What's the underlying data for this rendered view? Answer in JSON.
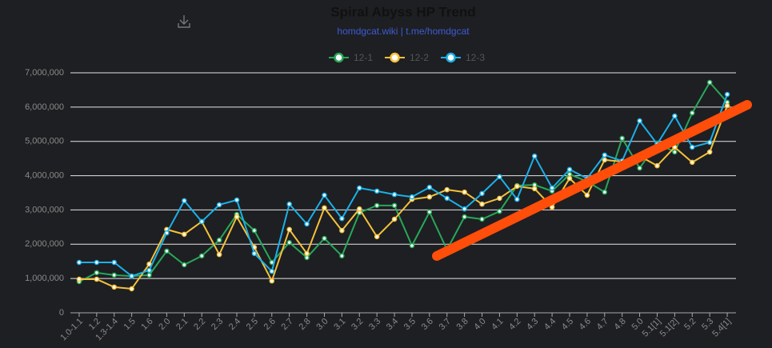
{
  "chart_data": {
    "type": "line",
    "title": "Spiral Abyss HP Trend",
    "subtitle": "homdgcat.wiki | t.me/homdgcat",
    "categories": [
      "1.0-1.1",
      "1.2",
      "1.3-1.4",
      "1.5",
      "1.6",
      "2.0",
      "2.1",
      "2.2",
      "2.3",
      "2.4",
      "2.5",
      "2.6",
      "2.7",
      "2.8",
      "3.0",
      "3.1",
      "3.2",
      "3.3",
      "3.4",
      "3.5",
      "3.6",
      "3.7",
      "3.8",
      "4.0",
      "4.1",
      "4.2",
      "4.3",
      "4.4",
      "4.5",
      "4.6",
      "4.7",
      "4.8",
      "5.0",
      "5.1[1]",
      "5.1[2]",
      "5.2",
      "5.3",
      "5.4[1]"
    ],
    "series": [
      {
        "name": "12-1",
        "color": "#27a85a",
        "values": [
          910000,
          1170000,
          1100000,
          1070000,
          1100000,
          1800000,
          1400000,
          1660000,
          2120000,
          2870000,
          2400000,
          1470000,
          2050000,
          1610000,
          2170000,
          1660000,
          2920000,
          3130000,
          3130000,
          1960000,
          2940000,
          1840000,
          2800000,
          2730000,
          2960000,
          3710000,
          3730000,
          3550000,
          4040000,
          3830000,
          3520000,
          5090000,
          4220000,
          4950000,
          4690000,
          5830000,
          6720000,
          6140000
        ]
      },
      {
        "name": "12-2",
        "color": "#f5c13a",
        "values": [
          980000,
          980000,
          750000,
          700000,
          1420000,
          2430000,
          2290000,
          2660000,
          1700000,
          2800000,
          1910000,
          930000,
          2430000,
          1730000,
          3060000,
          2400000,
          3030000,
          2220000,
          2730000,
          3310000,
          3380000,
          3590000,
          3520000,
          3170000,
          3340000,
          3690000,
          3620000,
          3080000,
          3920000,
          3430000,
          4460000,
          4410000,
          4570000,
          4290000,
          4830000,
          4390000,
          4690000,
          6040000
        ]
      },
      {
        "name": "12-3",
        "color": "#1bb0e8",
        "values": [
          1470000,
          1470000,
          1470000,
          1070000,
          1240000,
          2330000,
          3270000,
          2660000,
          3150000,
          3290000,
          1730000,
          1210000,
          3170000,
          2590000,
          3430000,
          2750000,
          3640000,
          3550000,
          3450000,
          3380000,
          3660000,
          3340000,
          3030000,
          3480000,
          3970000,
          3310000,
          4570000,
          3640000,
          4180000,
          3920000,
          4600000,
          4430000,
          5600000,
          4920000,
          5740000,
          4830000,
          4970000,
          6370000
        ]
      }
    ],
    "ylim": [
      0,
      7000000
    ],
    "yticks": [
      0,
      {
        "value": 1000000,
        "label": "1,000,000"
      },
      {
        "value": 2000000,
        "label": "2,000,000"
      },
      {
        "value": 3000000,
        "label": "3,000,000"
      },
      {
        "value": 4000000,
        "label": "4,000,000"
      },
      {
        "value": 5000000,
        "label": "5,000,000"
      },
      {
        "value": 6000000,
        "label": "6,000,000"
      },
      {
        "value": 7000000,
        "label": "7,000,000"
      }
    ],
    "grid": true
  }
}
